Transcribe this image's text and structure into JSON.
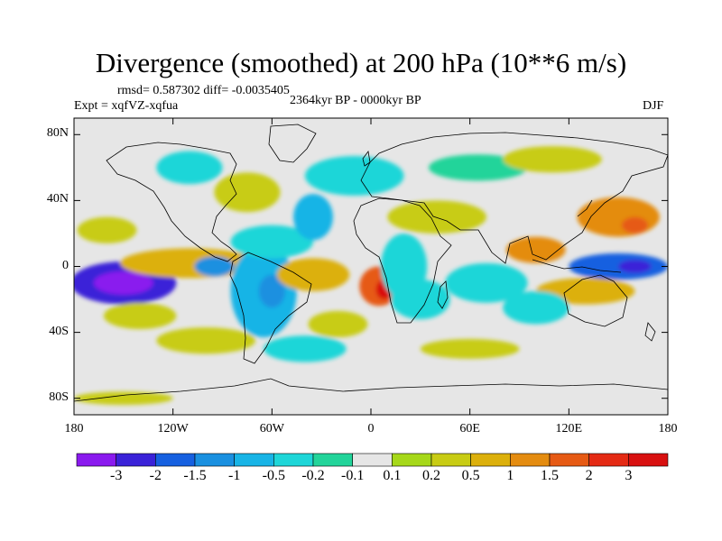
{
  "title": "Divergence (smoothed) at 200 hPa (10**6 m/s)",
  "stats": "rmsd= 0.587302 diff= -0.0035405",
  "experiment": "Expt = xqfVZ-xqfua",
  "period": "2364kyr BP - 0000kyr BP",
  "season": "DJF",
  "lat_ticks": [
    {
      "label": "80N",
      "lat": 80
    },
    {
      "label": "40N",
      "lat": 40
    },
    {
      "label": "0",
      "lat": 0
    },
    {
      "label": "40S",
      "lat": -40
    },
    {
      "label": "80S",
      "lat": -80
    }
  ],
  "lon_ticks": [
    {
      "label": "180",
      "lon": -180
    },
    {
      "label": "120W",
      "lon": -120
    },
    {
      "label": "60W",
      "lon": -60
    },
    {
      "label": "0",
      "lon": 0
    },
    {
      "label": "60E",
      "lon": 60
    },
    {
      "label": "120E",
      "lon": 120
    },
    {
      "label": "180",
      "lon": 180
    }
  ],
  "colorbar": {
    "colors": [
      "#8a1aee",
      "#3a22d8",
      "#1660e0",
      "#1a90e0",
      "#18b4e6",
      "#1ed6d8",
      "#22d49a",
      "#e6e6e6",
      "#a6d81a",
      "#c8cc14",
      "#dcb00c",
      "#e48c10",
      "#e65a14",
      "#e42a14",
      "#d81010"
    ],
    "labels": [
      "-3",
      "-2",
      "-1.5",
      "-1",
      "-0.5",
      "-0.2",
      "-0.1",
      "0.1",
      "0.2",
      "0.5",
      "1",
      "1.5",
      "2",
      "3"
    ]
  },
  "map_data": {
    "projection": "cylindrical-equidistant",
    "lon_range": [
      -180,
      180
    ],
    "lat_range": [
      -90,
      90
    ],
    "anomalies": [
      {
        "lon": -150,
        "lat": -10,
        "level": 1,
        "rx": 32,
        "ry": 13
      },
      {
        "lon": -150,
        "lat": -10,
        "level": 0,
        "rx": 18,
        "ry": 7
      },
      {
        "lon": -110,
        "lat": 2,
        "level": 10,
        "rx": 42,
        "ry": 9
      },
      {
        "lon": -160,
        "lat": 22,
        "level": 9,
        "rx": 18,
        "ry": 8
      },
      {
        "lon": -140,
        "lat": -30,
        "level": 9,
        "rx": 22,
        "ry": 8
      },
      {
        "lon": -65,
        "lat": -15,
        "level": 4,
        "rx": 20,
        "ry": 28
      },
      {
        "lon": -60,
        "lat": -15,
        "level": 3,
        "rx": 8,
        "ry": 10
      },
      {
        "lon": -95,
        "lat": 0,
        "level": 3,
        "rx": 12,
        "ry": 6
      },
      {
        "lon": -35,
        "lat": -5,
        "level": 10,
        "rx": 22,
        "ry": 10
      },
      {
        "lon": 5,
        "lat": -12,
        "level": 12,
        "rx": 12,
        "ry": 12
      },
      {
        "lon": 8,
        "lat": -14,
        "level": 14,
        "rx": 5,
        "ry": 6
      },
      {
        "lon": 20,
        "lat": 0,
        "level": 5,
        "rx": 14,
        "ry": 20
      },
      {
        "lon": 30,
        "lat": -20,
        "level": 5,
        "rx": 18,
        "ry": 12
      },
      {
        "lon": -60,
        "lat": 15,
        "level": 5,
        "rx": 25,
        "ry": 10
      },
      {
        "lon": -35,
        "lat": 30,
        "level": 4,
        "rx": 12,
        "ry": 14
      },
      {
        "lon": -75,
        "lat": 45,
        "level": 9,
        "rx": 20,
        "ry": 12
      },
      {
        "lon": -10,
        "lat": 55,
        "level": 5,
        "rx": 30,
        "ry": 12
      },
      {
        "lon": 40,
        "lat": 30,
        "level": 9,
        "rx": 30,
        "ry": 10
      },
      {
        "lon": 65,
        "lat": 60,
        "level": 6,
        "rx": 30,
        "ry": 8
      },
      {
        "lon": 110,
        "lat": 65,
        "level": 9,
        "rx": 30,
        "ry": 8
      },
      {
        "lon": 150,
        "lat": 30,
        "level": 11,
        "rx": 25,
        "ry": 12
      },
      {
        "lon": 160,
        "lat": 25,
        "level": 12,
        "rx": 8,
        "ry": 5
      },
      {
        "lon": 100,
        "lat": 10,
        "level": 11,
        "rx": 18,
        "ry": 8
      },
      {
        "lon": 150,
        "lat": 0,
        "level": 2,
        "rx": 30,
        "ry": 8
      },
      {
        "lon": 160,
        "lat": 0,
        "level": 1,
        "rx": 10,
        "ry": 4
      },
      {
        "lon": 130,
        "lat": -15,
        "level": 10,
        "rx": 30,
        "ry": 8
      },
      {
        "lon": 70,
        "lat": -10,
        "level": 5,
        "rx": 25,
        "ry": 12
      },
      {
        "lon": 100,
        "lat": -25,
        "level": 5,
        "rx": 20,
        "ry": 10
      },
      {
        "lon": -100,
        "lat": -45,
        "level": 9,
        "rx": 30,
        "ry": 8
      },
      {
        "lon": -40,
        "lat": -50,
        "level": 5,
        "rx": 25,
        "ry": 8
      },
      {
        "lon": 60,
        "lat": -50,
        "level": 9,
        "rx": 30,
        "ry": 6
      },
      {
        "lon": -20,
        "lat": -35,
        "level": 9,
        "rx": 18,
        "ry": 8
      },
      {
        "lon": -150,
        "lat": -80,
        "level": 9,
        "rx": 30,
        "ry": 4
      },
      {
        "lon": -110,
        "lat": 60,
        "level": 5,
        "rx": 20,
        "ry": 10
      }
    ]
  }
}
